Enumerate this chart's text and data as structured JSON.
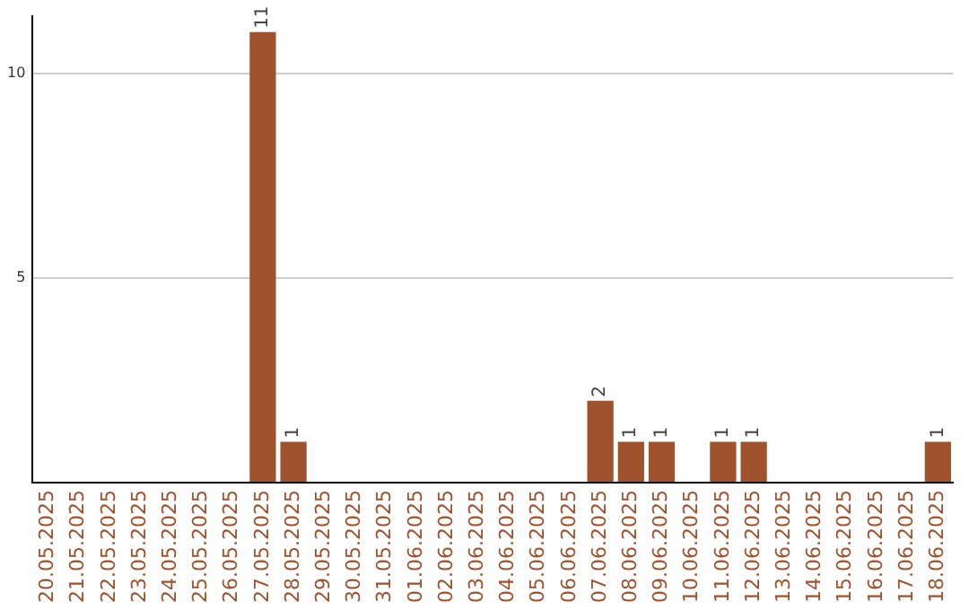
{
  "chart_data": {
    "type": "bar",
    "categories": [
      "20.05.2025",
      "21.05.2025",
      "22.05.2025",
      "23.05.2025",
      "24.05.2025",
      "25.05.2025",
      "26.05.2025",
      "27.05.2025",
      "28.05.2025",
      "29.05.2025",
      "30.05.2025",
      "31.05.2025",
      "01.06.2025",
      "02.06.2025",
      "03.06.2025",
      "04.06.2025",
      "05.06.2025",
      "06.06.2025",
      "07.06.2025",
      "08.06.2025",
      "09.06.2025",
      "10.06.2025",
      "11.06.2025",
      "12.06.2025",
      "13.06.2025",
      "14.06.2025",
      "15.06.2025",
      "16.06.2025",
      "17.06.2025",
      "18.06.2025"
    ],
    "values": [
      0,
      0,
      0,
      0,
      0,
      0,
      0,
      11,
      1,
      0,
      0,
      0,
      0,
      0,
      0,
      0,
      0,
      0,
      2,
      1,
      1,
      0,
      1,
      1,
      0,
      0,
      0,
      0,
      0,
      1
    ],
    "value_labels": [
      null,
      null,
      null,
      null,
      null,
      null,
      null,
      "11",
      "1",
      null,
      null,
      null,
      null,
      null,
      null,
      null,
      null,
      null,
      "2",
      "1",
      "1",
      null,
      "1",
      "1",
      null,
      null,
      null,
      null,
      null,
      "1"
    ],
    "color": "#a0522d",
    "ylim": [
      0,
      11.4
    ],
    "yticks": [
      {
        "value": 0,
        "label": null
      },
      5,
      10
    ],
    "grid": "y",
    "legend": false
  }
}
